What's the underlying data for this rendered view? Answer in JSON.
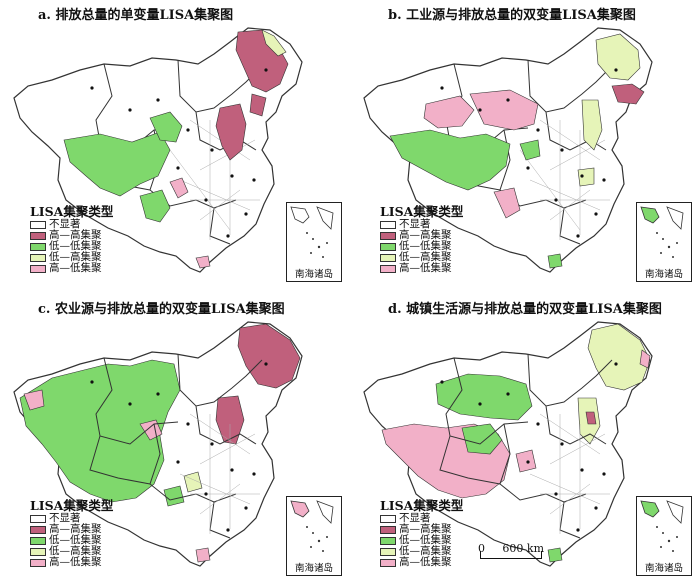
{
  "colors": {
    "not_significant": "#ffffff",
    "high_high": "#c0607c",
    "low_low": "#7fd86c",
    "low_high": "#e6f4b8",
    "high_low": "#f2b0c8",
    "province_border": "#333333",
    "county_border": "#9a9a9a"
  },
  "panels": [
    {
      "title": "a. 排放总量的单变量LISA集聚图",
      "legend": {
        "title": "LISA集聚类型",
        "items": [
          {
            "label": "不显著",
            "color": "#ffffff"
          },
          {
            "label": "高—高集聚",
            "color": "#c0607c"
          },
          {
            "label": "低—低集聚",
            "color": "#7fd86c"
          },
          {
            "label": "低—高集聚",
            "color": "#e6f4b8"
          },
          {
            "label": "高—低集聚",
            "color": "#f2b0c8"
          }
        ]
      },
      "inset_label": "南海诸岛"
    },
    {
      "title": "b. 工业源与排放总量的双变量LISA集聚图",
      "legend": {
        "title": "LISA集聚类型",
        "items": [
          {
            "label": "不显著",
            "color": "#ffffff"
          },
          {
            "label": "高—高集聚",
            "color": "#c0607c"
          },
          {
            "label": "低—低集聚",
            "color": "#7fd86c"
          },
          {
            "label": "低—高集聚",
            "color": "#e6f4b8"
          },
          {
            "label": "高—低集聚",
            "color": "#f2b0c8"
          }
        ]
      },
      "inset_label": "南海诸岛"
    },
    {
      "title": "c. 农业源与排放总量的双变量LISA集聚图",
      "legend": {
        "title": "LISA集聚类型",
        "items": [
          {
            "label": "不显著",
            "color": "#ffffff"
          },
          {
            "label": "高—高集聚",
            "color": "#c0607c"
          },
          {
            "label": "低—低集聚",
            "color": "#7fd86c"
          },
          {
            "label": "低—高集聚",
            "color": "#e6f4b8"
          },
          {
            "label": "高—低集聚",
            "color": "#f2b0c8"
          }
        ]
      },
      "inset_label": "南海诸岛"
    },
    {
      "title": "d. 城镇生活源与排放总量的双变量LISA集聚图",
      "legend": {
        "title": "LISA集聚类型",
        "items": [
          {
            "label": "不显著",
            "color": "#ffffff"
          },
          {
            "label": "高—高集聚",
            "color": "#c0607c"
          },
          {
            "label": "低—低集聚",
            "color": "#7fd86c"
          },
          {
            "label": "低—高集聚",
            "color": "#e6f4b8"
          },
          {
            "label": "高—低集聚",
            "color": "#f2b0c8"
          }
        ]
      },
      "inset_label": "南海诸岛"
    }
  ],
  "scale_bar": {
    "start": "0",
    "end": "600 km"
  }
}
